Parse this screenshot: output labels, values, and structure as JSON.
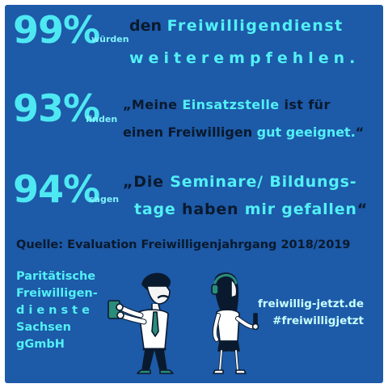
{
  "rows": [
    {
      "stat": "99%",
      "verb": "würden",
      "line1": [
        {
          "text": "den ",
          "tone": "dark"
        },
        {
          "text": "Freiwilligendienst",
          "tone": "cyan"
        }
      ],
      "line2": [
        {
          "text": "weiterempfehlen.",
          "tone": "cyan"
        }
      ]
    },
    {
      "stat": "93%",
      "verb": "finden",
      "line1": [
        {
          "text": "„Meine ",
          "tone": "dark"
        },
        {
          "text": "Einsatzstelle ",
          "tone": "cyan"
        },
        {
          "text": "ist für",
          "tone": "dark"
        }
      ],
      "line2": [
        {
          "text": "einen Freiwilligen ",
          "tone": "dark"
        },
        {
          "text": "gut geeignet.",
          "tone": "cyan"
        },
        {
          "text": "“",
          "tone": "dark"
        }
      ]
    },
    {
      "stat": "94%",
      "verb": "sagen",
      "line1": [
        {
          "text": "„Die ",
          "tone": "dark"
        },
        {
          "text": "Seminare/ Bildungs-",
          "tone": "cyan"
        }
      ],
      "line2": [
        {
          "text": "tage ",
          "tone": "cyan"
        },
        {
          "text": "haben ",
          "tone": "dark"
        },
        {
          "text": "mir gefallen",
          "tone": "cyan"
        },
        {
          "text": "“",
          "tone": "dark"
        }
      ]
    }
  ],
  "source": "Quelle: Evaluation Freiwilligenjahrgang 2018/2019",
  "organization": {
    "line1": "Paritätische",
    "line2": "Freiwilligen-",
    "line3": "dienste",
    "line4": "Sachsen gGmbH"
  },
  "website": "freiwillig-jetzt.de",
  "hashtag": "#freiwilligjetzt",
  "colors": {
    "background": "#1d5aa8",
    "accent_cyan": "#4ee8f3",
    "dark_text": "#0a1a2e",
    "frame": "#ffffff"
  },
  "illustration": {
    "left_figure": "man-taking-photo-with-phone",
    "right_figure": "woman-with-headphones-holding-phone"
  }
}
